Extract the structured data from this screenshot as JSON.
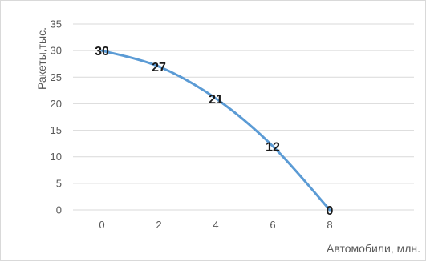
{
  "chart_data": {
    "type": "line",
    "title": "",
    "xlabel": "Автомобили, млн.",
    "ylabel": "Ракеты,тыс.",
    "x": [
      0,
      2,
      4,
      6,
      8
    ],
    "x_tick_labels": [
      "0",
      "2",
      "4",
      "6",
      "8"
    ],
    "y_tick_labels": [
      "0",
      "5",
      "10",
      "15",
      "20",
      "25",
      "30",
      "35"
    ],
    "ylim": [
      0,
      35
    ],
    "series": [
      {
        "values": [
          30,
          27,
          21,
          12,
          0
        ],
        "labels": [
          "30",
          "27",
          "21",
          "12",
          "0"
        ]
      }
    ],
    "line_color": "#5b9bd5",
    "grid": true,
    "smooth": true,
    "legend": "none"
  }
}
